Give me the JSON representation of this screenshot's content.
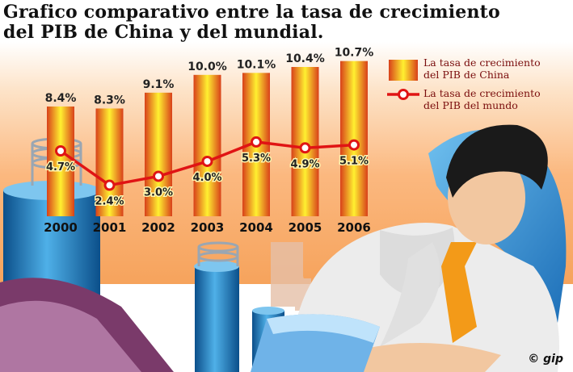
{
  "title_lines": [
    "Grafico comparativo entre la tasa de crecimiento",
    "del PIB de China y del mundial."
  ],
  "legend": {
    "china_label_lines": [
      "La tasa de crecimiento",
      "del PIB de China"
    ],
    "world_label_lines": [
      "La tasa de crecimiento",
      "del PIB del mundo"
    ]
  },
  "credit": "© gip",
  "colors": {
    "bar_edge": "#d8401a",
    "bar_center": "#fff030",
    "world_line": "#e01414",
    "legend_text": "#7a0d0d"
  },
  "chart_data": {
    "type": "bar",
    "categories": [
      "2000",
      "2001",
      "2002",
      "2003",
      "2004",
      "2005",
      "2006"
    ],
    "series": [
      {
        "name": "La tasa de crecimiento del PIB de China",
        "type": "bar",
        "values": [
          8.4,
          8.3,
          9.1,
          10.0,
          10.1,
          10.4,
          10.7
        ],
        "labels": [
          "8.4%",
          "8.3%",
          "9.1%",
          "10.0%",
          "10.1%",
          "10.4%",
          "10.7%"
        ]
      },
      {
        "name": "La tasa de crecimiento del PIB del mundo",
        "type": "line",
        "values": [
          4.7,
          2.4,
          3.0,
          4.0,
          5.3,
          4.9,
          5.1
        ],
        "labels": [
          "4.7%",
          "2.4%",
          "3.0%",
          "4.0%",
          "5.3%",
          "4.9%",
          "5.1%"
        ]
      }
    ],
    "legend_position": "top-right",
    "grid": false
  }
}
